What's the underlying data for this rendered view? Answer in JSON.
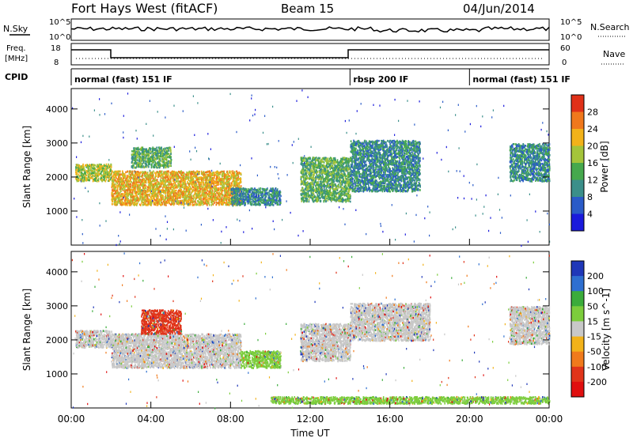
{
  "header": {
    "title": "Fort Hays West (fitACF)",
    "beam": "Beam 15",
    "date": "04/Jun/2014"
  },
  "top_panels": {
    "nsky_label": "N.Sky",
    "nsky_ticks": [
      "10^5",
      "10^0"
    ],
    "nsky_right_ticks": [
      "10^5",
      "10^0"
    ],
    "nsearch_label": "N.Search",
    "freq_label_line1": "Freq.",
    "freq_label_line2": "[MHz]",
    "freq_ticks": [
      "18",
      "8"
    ],
    "nave_label": "Nave",
    "nave_ticks": [
      "60",
      "0"
    ],
    "cpid_label": "CPID",
    "cpid_segments": [
      {
        "name": "normal (fast) 151 IF",
        "start_h": 0,
        "end_h": 14
      },
      {
        "name": "rbsp 200 IF",
        "start_h": 14,
        "end_h": 20
      },
      {
        "name": "normal (fast) 151 IF",
        "start_h": 20,
        "end_h": 24
      }
    ]
  },
  "chart_data": [
    {
      "type": "heatmap",
      "title": "",
      "xlabel": "",
      "ylabel": "Slant Range [km]",
      "x_range_hours": [
        0,
        24
      ],
      "ylim": [
        0,
        4600
      ],
      "yticks": [
        1000,
        2000,
        3000,
        4000
      ],
      "colorbar": {
        "label": "Power [dB]",
        "ticks": [
          "4",
          "8",
          "12",
          "16",
          "20",
          "24",
          "28"
        ],
        "colors": [
          "#1a1adc",
          "#2a5bc8",
          "#3b8f8a",
          "#46a84d",
          "#a4c43a",
          "#f2b21a",
          "#f0781c",
          "#e03118"
        ]
      },
      "echo_regions": [
        {
          "x0": 0.2,
          "x1": 2.0,
          "r0": 1900,
          "r1": 2400,
          "level": 4
        },
        {
          "x0": 2.0,
          "x1": 8.5,
          "r0": 1200,
          "r1": 2200,
          "level": 5
        },
        {
          "x0": 3.0,
          "x1": 5.0,
          "r0": 2300,
          "r1": 2900,
          "level": 3
        },
        {
          "x0": 8.0,
          "x1": 10.5,
          "r0": 1200,
          "r1": 1700,
          "level": 2
        },
        {
          "x0": 11.5,
          "x1": 14.0,
          "r0": 1300,
          "r1": 2600,
          "level": 3
        },
        {
          "x0": 14.0,
          "x1": 17.5,
          "r0": 1600,
          "r1": 3100,
          "level": 2
        },
        {
          "x0": 22.0,
          "x1": 24.0,
          "r0": 1900,
          "r1": 3000,
          "level": 2
        }
      ]
    },
    {
      "type": "heatmap",
      "title": "",
      "xlabel": "Time UT",
      "ylabel": "Slant Range [km]",
      "x_range_hours": [
        0,
        24
      ],
      "ylim": [
        0,
        4600
      ],
      "yticks": [
        1000,
        2000,
        3000,
        4000
      ],
      "xticks": [
        "00:00",
        "04:00",
        "08:00",
        "12:00",
        "16:00",
        "20:00",
        "00:00"
      ],
      "colorbar": {
        "label": "Velocity [m s^-1]",
        "ticks": [
          "200",
          "100",
          "50",
          "15",
          "-15",
          "-50",
          "-100",
          "-200"
        ],
        "colors": [
          "#1f37b8",
          "#2e6fd0",
          "#3bac3b",
          "#7ccd3c",
          "#c8c8c8",
          "#f2b21a",
          "#f07a1c",
          "#e0341a",
          "#e00f0f"
        ]
      },
      "echo_regions": [
        {
          "x0": 0.2,
          "x1": 2.0,
          "r0": 1800,
          "r1": 2300,
          "color": "#c8c8c8"
        },
        {
          "x0": 2.0,
          "x1": 8.5,
          "r0": 1200,
          "r1": 2200,
          "color": "#c8c8c8"
        },
        {
          "x0": 3.5,
          "x1": 5.5,
          "r0": 2200,
          "r1": 2900,
          "color": "#e0341a"
        },
        {
          "x0": 8.5,
          "x1": 10.5,
          "r0": 1200,
          "r1": 1700,
          "color": "#7ccd3c"
        },
        {
          "x0": 11.5,
          "x1": 14.0,
          "r0": 1400,
          "r1": 2500,
          "color": "#c8c8c8"
        },
        {
          "x0": 14.0,
          "x1": 18.0,
          "r0": 2000,
          "r1": 3100,
          "color": "#c8c8c8"
        },
        {
          "x0": 10.0,
          "x1": 24.0,
          "r0": 150,
          "r1": 350,
          "color": "#7ccd3c"
        },
        {
          "x0": 22.0,
          "x1": 24.0,
          "r0": 1900,
          "r1": 3000,
          "color": "#c8c8c8"
        }
      ]
    }
  ]
}
